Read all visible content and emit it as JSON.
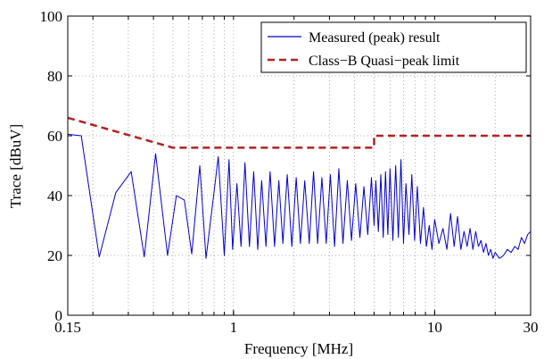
{
  "chart_data": {
    "type": "line",
    "title": "",
    "xlabel": "Frequency [MHz]",
    "ylabel": "Trace [dBuV]",
    "xscale": "log",
    "xlim": [
      0.15,
      30
    ],
    "ylim": [
      0,
      100
    ],
    "x_ticks": [
      0.15,
      1,
      10,
      30
    ],
    "x_tick_labels": [
      "0.15",
      "1",
      "10",
      "30"
    ],
    "y_ticks": [
      0,
      20,
      40,
      60,
      80,
      100
    ],
    "y_tick_labels": [
      "0",
      "20",
      "40",
      "60",
      "80",
      "100"
    ],
    "grid": true,
    "legend_position": "top-right",
    "series": [
      {
        "name": "Measured (peak) result",
        "color": "#0000cc",
        "style": "solid",
        "x": [
          0.15,
          0.175,
          0.215,
          0.26,
          0.31,
          0.36,
          0.41,
          0.47,
          0.52,
          0.57,
          0.62,
          0.68,
          0.73,
          0.78,
          0.84,
          0.9,
          0.95,
          0.99,
          1.04,
          1.09,
          1.14,
          1.2,
          1.26,
          1.32,
          1.38,
          1.45,
          1.52,
          1.6,
          1.68,
          1.76,
          1.85,
          1.95,
          2.05,
          2.15,
          2.26,
          2.38,
          2.5,
          2.62,
          2.75,
          2.89,
          3.03,
          3.18,
          3.34,
          3.5,
          3.68,
          3.86,
          4.05,
          4.25,
          4.45,
          4.65,
          4.85,
          5.0,
          5.1,
          5.25,
          5.4,
          5.55,
          5.7,
          5.85,
          6.0,
          6.2,
          6.4,
          6.6,
          6.8,
          7.0,
          7.2,
          7.45,
          7.7,
          7.95,
          8.2,
          8.5,
          8.8,
          9.1,
          9.4,
          9.7,
          10.0,
          10.5,
          11.0,
          11.5,
          12.0,
          12.5,
          13.0,
          13.5,
          14.0,
          14.5,
          15.0,
          15.5,
          16.0,
          16.5,
          17.0,
          17.5,
          18.0,
          18.5,
          19.0,
          19.5,
          20.0,
          21.0,
          22.0,
          23.0,
          24.0,
          25.0,
          26.0,
          27.0,
          28.0,
          29.0,
          30.0
        ],
        "values": [
          60.5,
          60,
          19.5,
          41,
          48,
          19.5,
          54,
          20,
          40,
          38.5,
          20.5,
          50,
          19,
          35,
          53,
          20,
          52,
          22,
          44,
          23,
          51,
          23,
          48,
          22,
          45,
          23,
          48,
          23,
          45,
          24,
          47,
          23,
          46,
          24,
          45,
          24,
          48,
          24,
          46,
          24,
          47,
          23,
          49,
          24,
          45,
          25,
          44,
          26,
          43,
          27,
          46,
          30,
          45,
          28,
          47,
          26,
          48,
          27,
          49,
          25,
          50,
          26,
          52,
          24,
          44,
          27,
          47,
          25,
          43,
          24,
          36,
          23,
          30,
          22,
          32,
          24,
          29,
          22,
          34,
          23,
          33,
          22,
          28,
          23,
          29,
          22,
          28,
          23,
          25,
          21,
          24,
          20,
          22,
          19,
          21,
          19,
          20,
          22,
          21,
          23,
          22,
          26,
          24,
          27,
          28
        ]
      },
      {
        "name": "Class−B Quasi−peak limit",
        "color": "#b22222",
        "style": "dashed",
        "x": [
          0.15,
          0.5,
          5,
          5,
          30
        ],
        "values": [
          66,
          56,
          56,
          60,
          60
        ]
      }
    ]
  }
}
